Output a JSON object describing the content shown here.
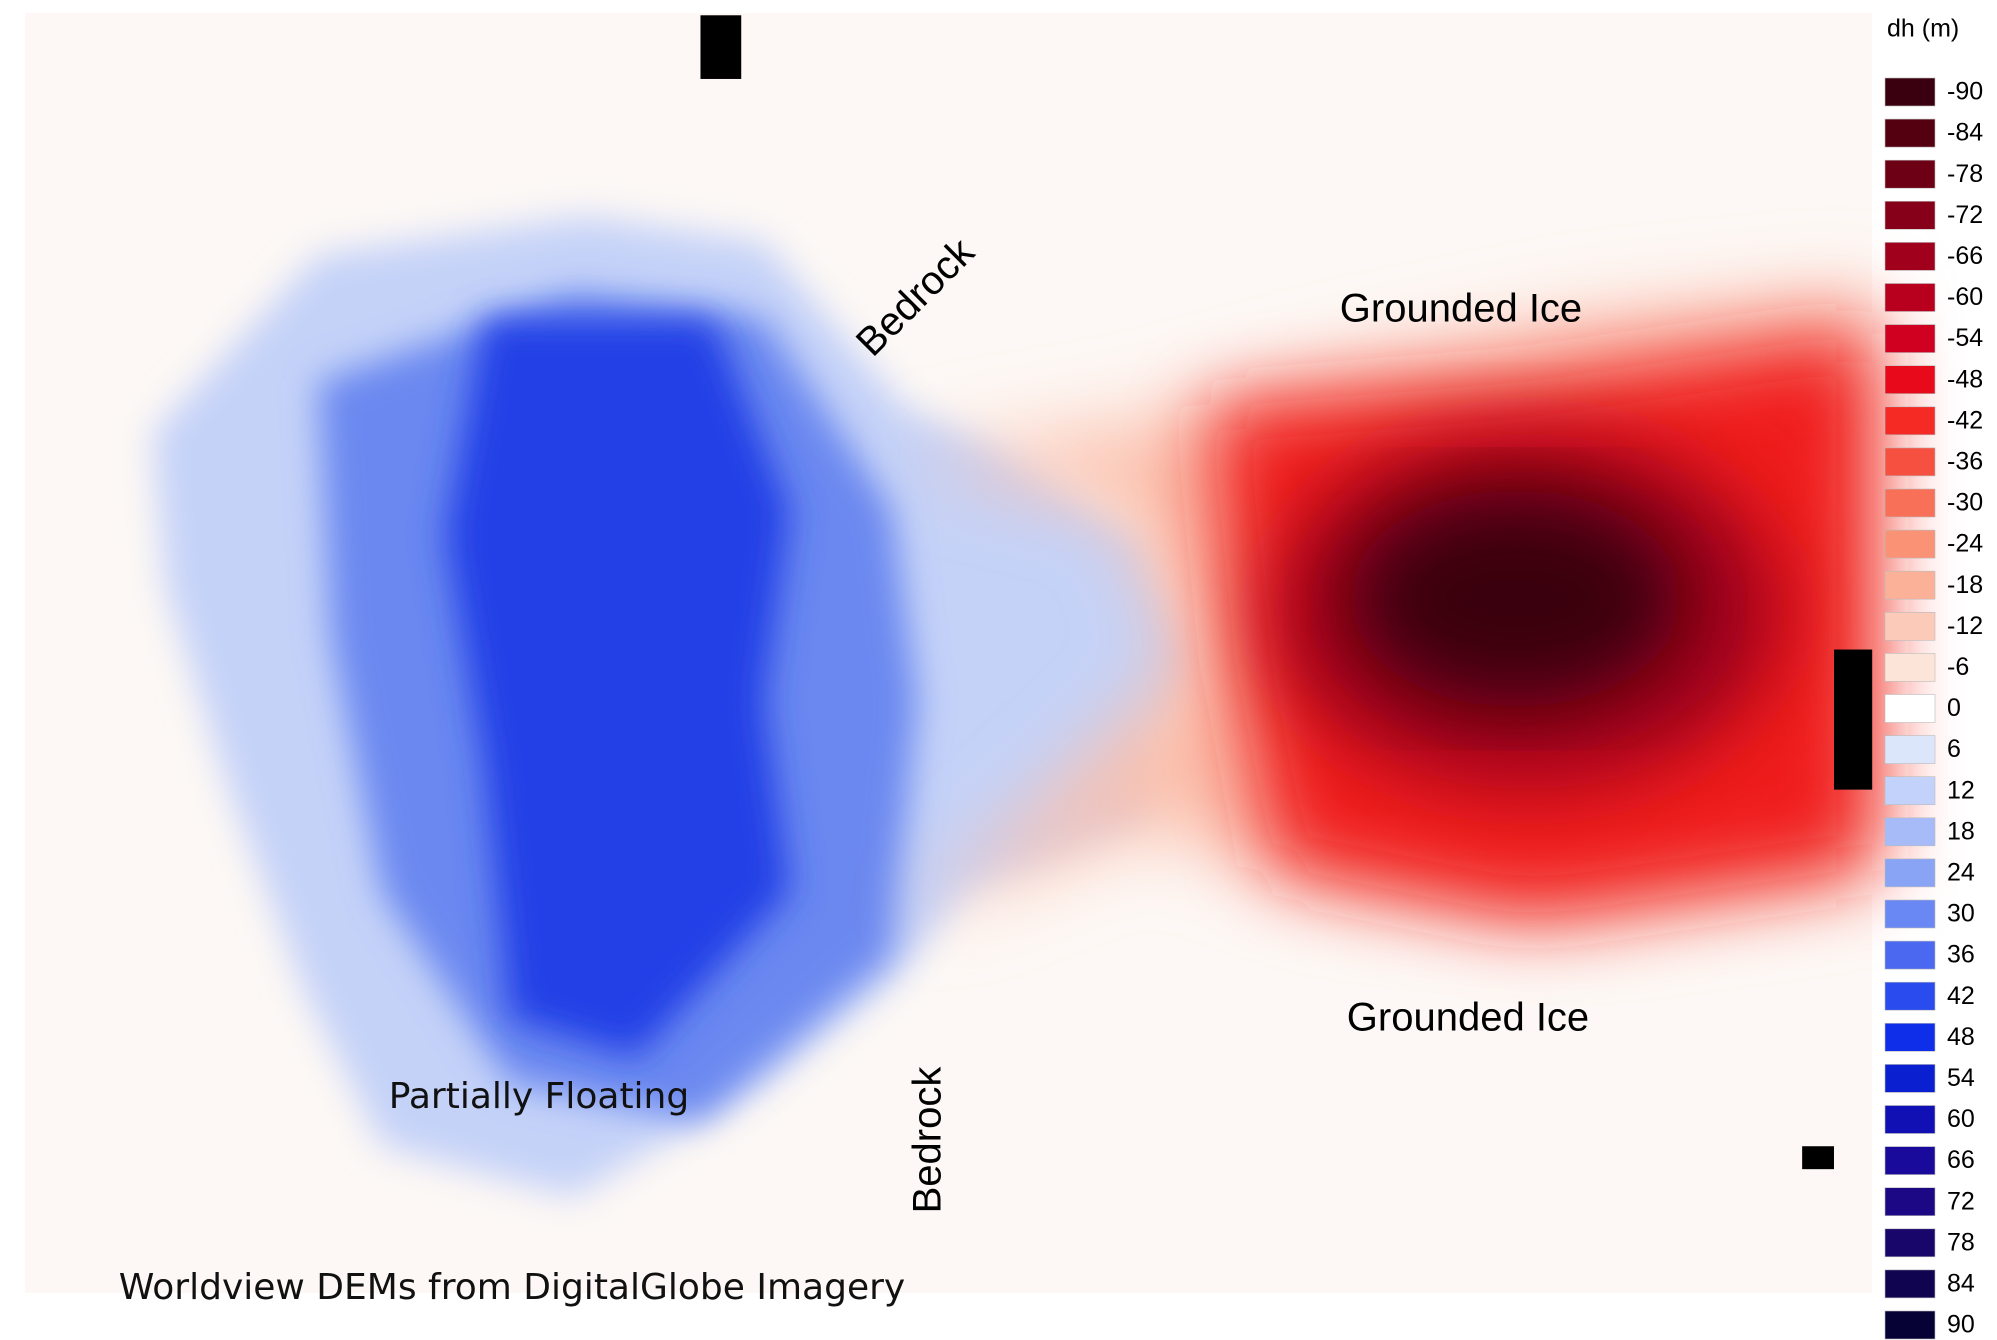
{
  "map": {
    "annotations": {
      "bedrock_top": "Bedrock",
      "bedrock_bottom": "Bedrock",
      "grounded_ice_top": "Grounded Ice",
      "grounded_ice_bottom": "Grounded Ice",
      "partially_floating": "Partially Floating"
    },
    "credit": "Worldview DEMs from DigitalGlobe Imagery",
    "legend": {
      "title": "dh (m)",
      "entries": [
        {
          "value": -90,
          "color": "#3b0010"
        },
        {
          "value": -84,
          "color": "#550010"
        },
        {
          "value": -78,
          "color": "#6d0015"
        },
        {
          "value": -72,
          "color": "#87001a"
        },
        {
          "value": -66,
          "color": "#a0001c"
        },
        {
          "value": -60,
          "color": "#b8001e"
        },
        {
          "value": -54,
          "color": "#d00020"
        },
        {
          "value": -48,
          "color": "#e80a1a"
        },
        {
          "value": -42,
          "color": "#f52a24"
        },
        {
          "value": -36,
          "color": "#f65040"
        },
        {
          "value": -30,
          "color": "#f87058"
        },
        {
          "value": -24,
          "color": "#fa9276"
        },
        {
          "value": -18,
          "color": "#fbb098"
        },
        {
          "value": -12,
          "color": "#fccab8"
        },
        {
          "value": -6,
          "color": "#fde4d8"
        },
        {
          "value": 0,
          "color": "#ffffff"
        },
        {
          "value": 6,
          "color": "#dce6fb"
        },
        {
          "value": 12,
          "color": "#c2d2fb"
        },
        {
          "value": 18,
          "color": "#a6bbf8"
        },
        {
          "value": 24,
          "color": "#8aa4f5"
        },
        {
          "value": 30,
          "color": "#6a88f3"
        },
        {
          "value": 36,
          "color": "#4a68f0"
        },
        {
          "value": 42,
          "color": "#2a4cee"
        },
        {
          "value": 48,
          "color": "#0e2eea"
        },
        {
          "value": 54,
          "color": "#0a1fd0"
        },
        {
          "value": 60,
          "color": "#1010b4"
        },
        {
          "value": 66,
          "color": "#1a0a9c"
        },
        {
          "value": 72,
          "color": "#1c0884"
        },
        {
          "value": 78,
          "color": "#18066a"
        },
        {
          "value": 84,
          "color": "#100450"
        },
        {
          "value": 90,
          "color": "#060236"
        }
      ]
    }
  }
}
